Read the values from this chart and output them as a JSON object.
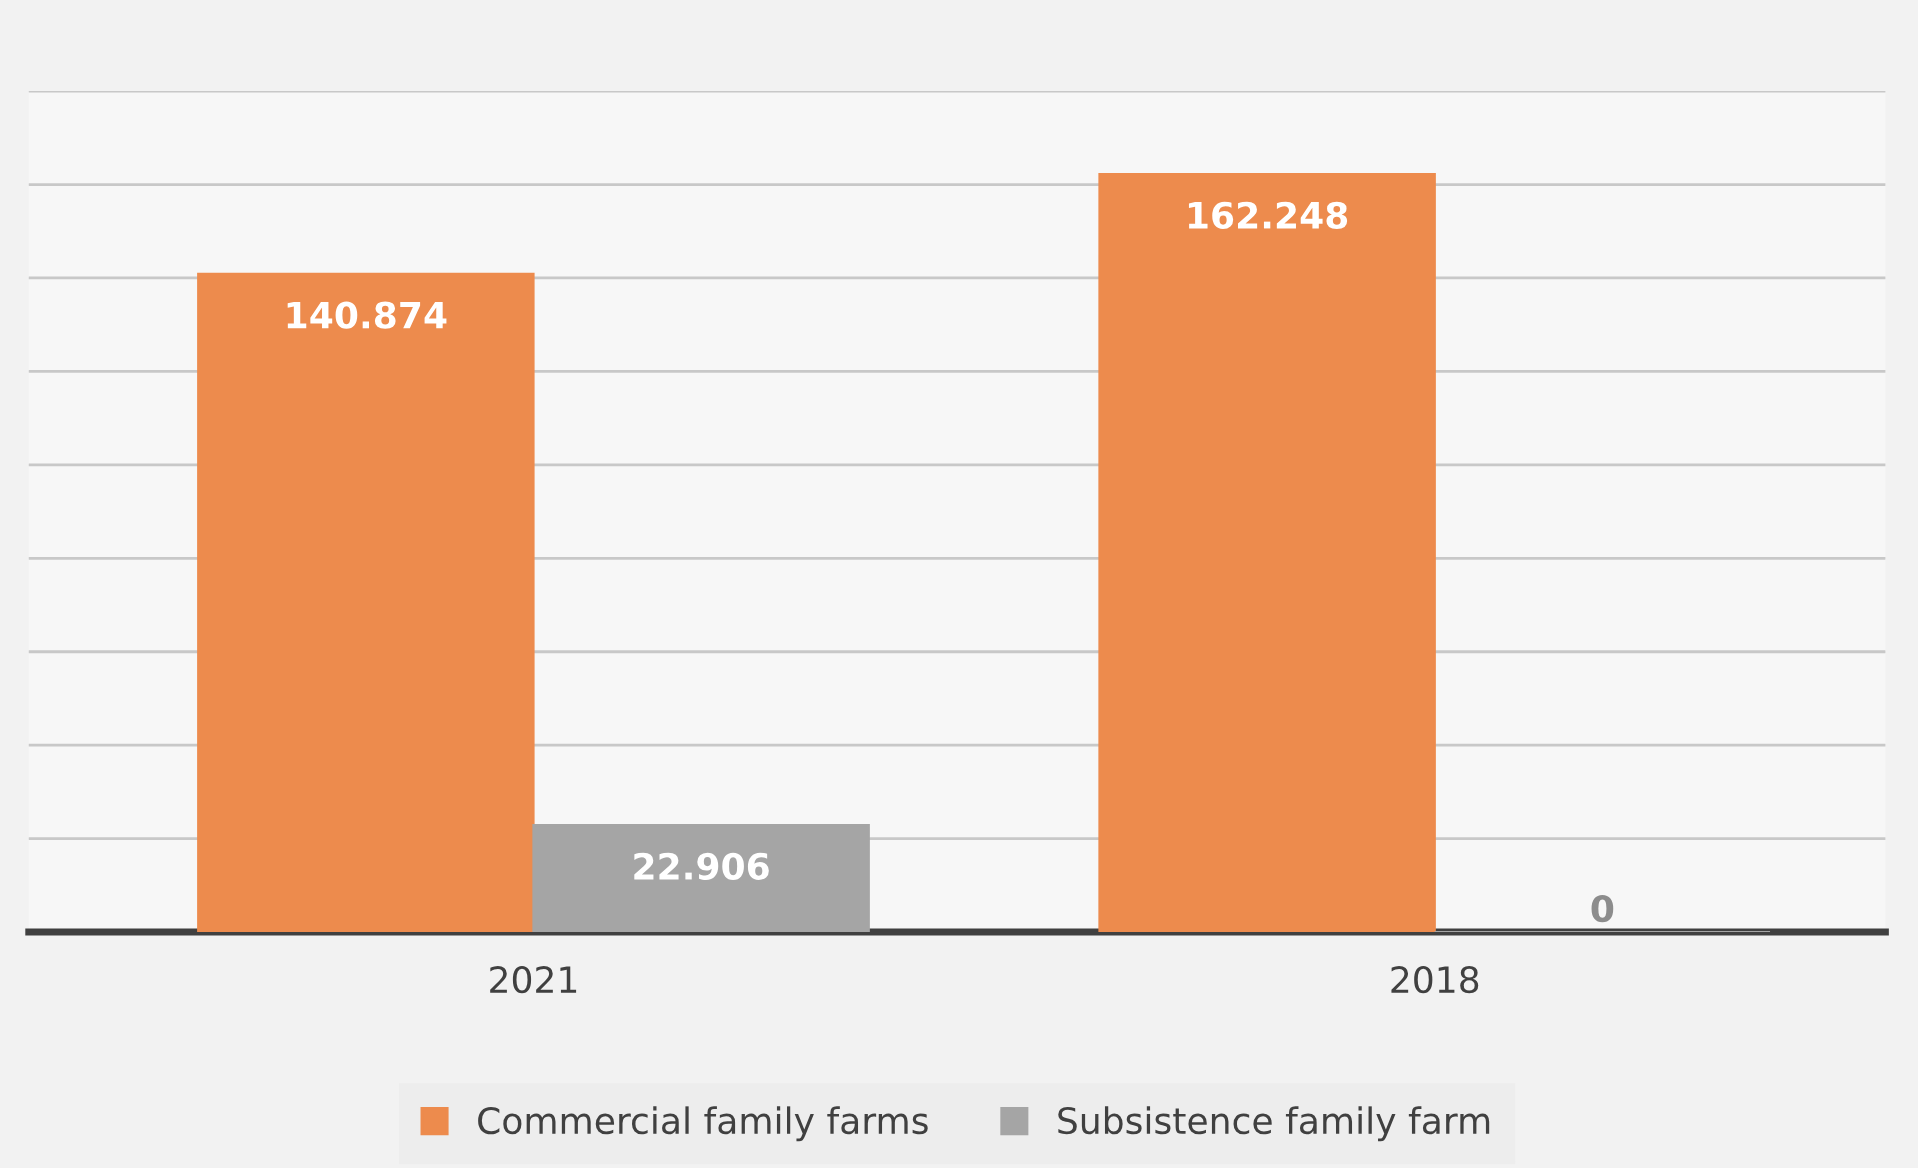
{
  "chart_data": {
    "type": "bar",
    "categories": [
      "2021",
      "2018"
    ],
    "series": [
      {
        "name": "Commercial family farms",
        "color": "#ed8b4d",
        "values": [
          140.874,
          162.248
        ]
      },
      {
        "name": "Subsistence family farm",
        "color": "#a5a5a5",
        "values": [
          22.906,
          0
        ]
      }
    ],
    "ylim": [
      0,
      180
    ],
    "yticks": [
      {
        "value": 0,
        "label": null
      },
      {
        "value": 20,
        "label": null
      },
      {
        "value": 40,
        "label": null
      },
      {
        "value": 60,
        "label": null
      },
      {
        "value": 80,
        "label": null
      },
      {
        "value": 100,
        "label": null
      },
      {
        "value": 120,
        "label": null
      },
      {
        "value": 140,
        "label": null
      },
      {
        "value": 160,
        "label": null
      },
      {
        "value": 180,
        "label": null
      }
    ],
    "tick_labels": "x",
    "grid": "y",
    "data_labels": true,
    "legend": "bottom"
  }
}
